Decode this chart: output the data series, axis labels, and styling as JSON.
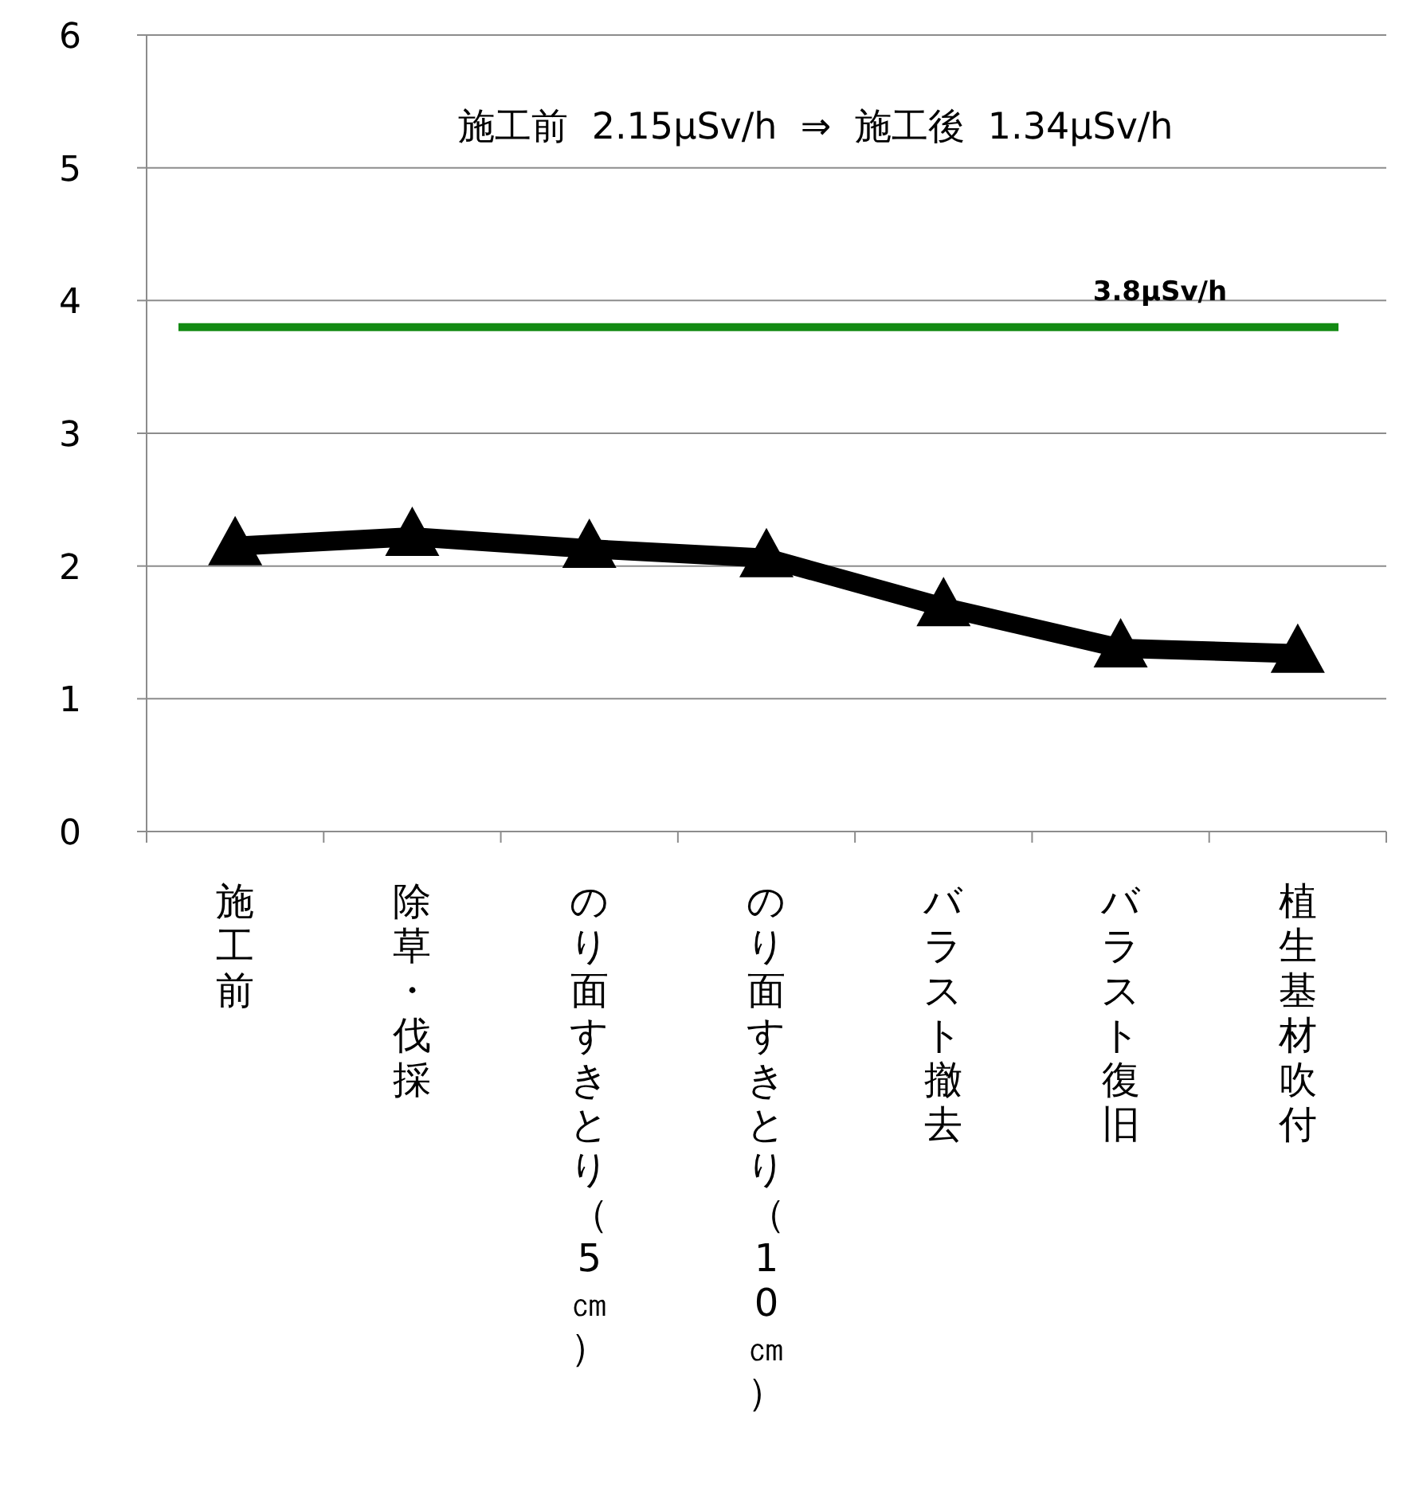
{
  "chart_data": {
    "type": "line",
    "categories": [
      "施工前",
      "除草・伐採",
      "のり面すきとり（5㎝）",
      "のり面すきとり（10㎝）",
      "バラスト撤去",
      "バラスト復旧",
      "植生基材吹付"
    ],
    "series": [
      {
        "color": "#000000",
        "values": [
          2.15,
          2.22,
          2.13,
          2.06,
          1.69,
          1.38,
          1.34
        ]
      }
    ],
    "marker": "triangle",
    "line_style": "solid",
    "ylim": [
      0,
      6
    ],
    "yticks": [
      0,
      1,
      2,
      3,
      4,
      5,
      6
    ],
    "grid": "y",
    "ref_lines": [
      {
        "axis": "y",
        "value": 3.8,
        "label": "3.8μSv/h",
        "color": "#138a13",
        "line_style": "solid"
      }
    ],
    "annotations": [
      "施工前  2.15μSv/h  ⇒  施工後  1.34μSv/h"
    ]
  }
}
